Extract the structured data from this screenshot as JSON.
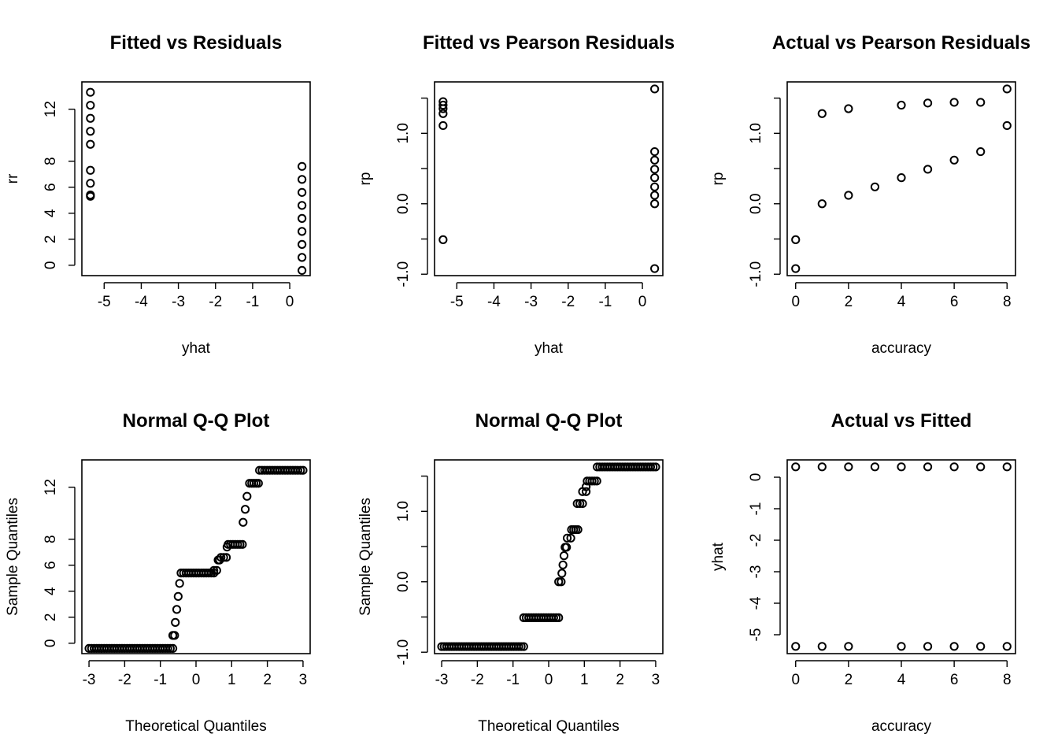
{
  "chart_data": [
    {
      "type": "scatter",
      "title": "Fitted vs Residuals",
      "xlabel": "yhat",
      "ylabel": "rr",
      "xlim": [
        -5.6,
        0.55
      ],
      "ylim": [
        -0.8,
        14.1
      ],
      "xticks": [
        -5,
        -4,
        -3,
        -2,
        -1,
        0
      ],
      "xtick_labels": [
        "-5",
        "-4",
        "-3",
        "-2",
        "-1",
        "0"
      ],
      "yticks": [
        0,
        2,
        4,
        6,
        8,
        12
      ],
      "ytick_labels": [
        "0",
        "2",
        "4",
        "6",
        "8",
        "12"
      ],
      "grid": false,
      "points": [
        [
          -5.37,
          13.3
        ],
        [
          -5.37,
          12.3
        ],
        [
          -5.37,
          11.3
        ],
        [
          -5.37,
          10.3
        ],
        [
          -5.37,
          9.3
        ],
        [
          -5.37,
          7.3
        ],
        [
          -5.37,
          6.3
        ],
        [
          -5.37,
          5.4
        ],
        [
          -5.37,
          5.3
        ],
        [
          0.33,
          7.6
        ],
        [
          0.33,
          6.6
        ],
        [
          0.33,
          5.6
        ],
        [
          0.33,
          4.6
        ],
        [
          0.33,
          3.6
        ],
        [
          0.33,
          2.6
        ],
        [
          0.33,
          1.6
        ],
        [
          0.33,
          0.6
        ],
        [
          0.33,
          -0.4
        ]
      ]
    },
    {
      "type": "scatter",
      "title": "Fitted vs Pearson Residuals",
      "xlabel": "yhat",
      "ylabel": "rp",
      "xlim": [
        -5.6,
        0.55
      ],
      "ylim": [
        -1.02,
        1.73
      ],
      "xticks": [
        -5,
        -4,
        -3,
        -2,
        -1,
        0
      ],
      "xtick_labels": [
        "-5",
        "-4",
        "-3",
        "-2",
        "-1",
        "0"
      ],
      "yticks": [
        -1.0,
        -0.5,
        0.0,
        0.5,
        1.0,
        1.5
      ],
      "ytick_labels": [
        "-1.0",
        "",
        "0.0",
        "",
        "1.0",
        ""
      ],
      "grid": false,
      "points": [
        [
          -5.37,
          1.45
        ],
        [
          -5.37,
          1.4
        ],
        [
          -5.37,
          1.35
        ],
        [
          -5.37,
          1.28
        ],
        [
          -5.37,
          1.11
        ],
        [
          -5.37,
          -0.51
        ],
        [
          0.33,
          1.63
        ],
        [
          0.33,
          0.74
        ],
        [
          0.33,
          0.62
        ],
        [
          0.33,
          0.49
        ],
        [
          0.33,
          0.37
        ],
        [
          0.33,
          0.24
        ],
        [
          0.33,
          0.12
        ],
        [
          0.33,
          0.0
        ],
        [
          0.33,
          -0.92
        ]
      ]
    },
    {
      "type": "scatter",
      "title": "Actual vs Pearson Residuals",
      "xlabel": "accuracy",
      "ylabel": "rp",
      "xlim": [
        -0.32,
        8.32
      ],
      "ylim": [
        -1.02,
        1.73
      ],
      "xticks": [
        0,
        2,
        4,
        6,
        8
      ],
      "xtick_labels": [
        "0",
        "2",
        "4",
        "6",
        "8"
      ],
      "yticks": [
        -1.0,
        -0.5,
        0.0,
        0.5,
        1.0,
        1.5
      ],
      "ytick_labels": [
        "-1.0",
        "",
        "0.0",
        "",
        "1.0",
        ""
      ],
      "grid": false,
      "points": [
        [
          0,
          -0.51
        ],
        [
          0,
          -0.92
        ],
        [
          1,
          1.28
        ],
        [
          1,
          0.0
        ],
        [
          2,
          1.35
        ],
        [
          2,
          0.12
        ],
        [
          3,
          0.24
        ],
        [
          4,
          1.4
        ],
        [
          4,
          0.37
        ],
        [
          5,
          1.43
        ],
        [
          5,
          0.49
        ],
        [
          6,
          1.44
        ],
        [
          6,
          0.62
        ],
        [
          7,
          1.44
        ],
        [
          7,
          0.74
        ],
        [
          8,
          1.63
        ],
        [
          8,
          1.11
        ]
      ]
    },
    {
      "type": "scatter",
      "title": "Normal Q-Q Plot",
      "xlabel": "Theoretical Quantiles",
      "ylabel": "Sample Quantiles",
      "xlim": [
        -3.2,
        3.2
      ],
      "ylim": [
        -0.8,
        14.1
      ],
      "xticks": [
        -3,
        -2,
        -1,
        0,
        1,
        2,
        3
      ],
      "xtick_labels": [
        "-3",
        "-2",
        "-1",
        "0",
        "1",
        "2",
        "3"
      ],
      "yticks": [
        0,
        2,
        4,
        6,
        8,
        12
      ],
      "ytick_labels": [
        "0",
        "2",
        "4",
        "6",
        "8",
        "12"
      ],
      "grid": false,
      "qq_levels": [
        {
          "value": -0.4,
          "from": -3.0,
          "to": -0.65
        },
        {
          "value": 0.6,
          "from": -0.65,
          "to": -0.6
        },
        {
          "value": 1.6,
          "from": -0.58,
          "to": -0.56
        },
        {
          "value": 2.6,
          "from": -0.54,
          "to": -0.52
        },
        {
          "value": 3.6,
          "from": -0.5,
          "to": -0.48
        },
        {
          "value": 4.6,
          "from": -0.46,
          "to": -0.44
        },
        {
          "value": 5.4,
          "from": -0.42,
          "to": 0.5
        },
        {
          "value": 5.6,
          "from": 0.5,
          "to": 0.58
        },
        {
          "value": 6.4,
          "from": 0.62,
          "to": 0.66
        },
        {
          "value": 6.6,
          "from": 0.7,
          "to": 0.85
        },
        {
          "value": 7.4,
          "from": 0.87,
          "to": 0.89
        },
        {
          "value": 7.6,
          "from": 0.9,
          "to": 1.3
        },
        {
          "value": 9.3,
          "from": 1.32,
          "to": 1.34
        },
        {
          "value": 10.3,
          "from": 1.38,
          "to": 1.4
        },
        {
          "value": 11.3,
          "from": 1.43,
          "to": 1.46
        },
        {
          "value": 12.3,
          "from": 1.5,
          "to": 1.75
        },
        {
          "value": 13.3,
          "from": 1.78,
          "to": 3.0
        }
      ]
    },
    {
      "type": "scatter",
      "title": "Normal Q-Q Plot",
      "xlabel": "Theoretical Quantiles",
      "ylabel": "Sample Quantiles",
      "xlim": [
        -3.2,
        3.2
      ],
      "ylim": [
        -1.02,
        1.73
      ],
      "xticks": [
        -3,
        -2,
        -1,
        0,
        1,
        2,
        3
      ],
      "xtick_labels": [
        "-3",
        "-2",
        "-1",
        "0",
        "1",
        "2",
        "3"
      ],
      "yticks": [
        -1.0,
        -0.5,
        0.0,
        0.5,
        1.0,
        1.5
      ],
      "ytick_labels": [
        "-1.0",
        "",
        "0.0",
        "",
        "1.0",
        ""
      ],
      "grid": false,
      "qq_levels": [
        {
          "value": -0.92,
          "from": -3.0,
          "to": -0.7
        },
        {
          "value": -0.51,
          "from": -0.7,
          "to": 0.28
        },
        {
          "value": 0.0,
          "from": 0.28,
          "to": 0.35
        },
        {
          "value": 0.12,
          "from": 0.37,
          "to": 0.39
        },
        {
          "value": 0.24,
          "from": 0.4,
          "to": 0.42
        },
        {
          "value": 0.37,
          "from": 0.43,
          "to": 0.45
        },
        {
          "value": 0.49,
          "from": 0.46,
          "to": 0.5
        },
        {
          "value": 0.62,
          "from": 0.52,
          "to": 0.62
        },
        {
          "value": 0.74,
          "from": 0.64,
          "to": 0.82
        },
        {
          "value": 1.11,
          "from": 0.8,
          "to": 0.95
        },
        {
          "value": 1.28,
          "from": 0.95,
          "to": 1.05
        },
        {
          "value": 1.35,
          "from": 1.05,
          "to": 1.07
        },
        {
          "value": 1.43,
          "from": 1.08,
          "to": 1.35
        },
        {
          "value": 1.63,
          "from": 1.36,
          "to": 3.0
        }
      ]
    },
    {
      "type": "scatter",
      "title": "Actual vs Fitted",
      "xlabel": "accuracy",
      "ylabel": "yhat",
      "xlim": [
        -0.32,
        8.32
      ],
      "ylim": [
        -5.6,
        0.55
      ],
      "xticks": [
        0,
        2,
        4,
        6,
        8
      ],
      "xtick_labels": [
        "0",
        "2",
        "4",
        "6",
        "8"
      ],
      "yticks": [
        -5,
        -4,
        -3,
        -2,
        -1,
        0
      ],
      "ytick_labels": [
        "-5",
        "-4",
        "-3",
        "-2",
        "-1",
        "0"
      ],
      "grid": false,
      "points": [
        [
          0,
          0.33
        ],
        [
          1,
          0.33
        ],
        [
          2,
          0.33
        ],
        [
          3,
          0.33
        ],
        [
          4,
          0.33
        ],
        [
          5,
          0.33
        ],
        [
          6,
          0.33
        ],
        [
          7,
          0.33
        ],
        [
          8,
          0.33
        ],
        [
          0,
          -5.37
        ],
        [
          1,
          -5.37
        ],
        [
          2,
          -5.37
        ],
        [
          4,
          -5.37
        ],
        [
          5,
          -5.37
        ],
        [
          6,
          -5.37
        ],
        [
          7,
          -5.37
        ],
        [
          8,
          -5.37
        ]
      ]
    }
  ]
}
